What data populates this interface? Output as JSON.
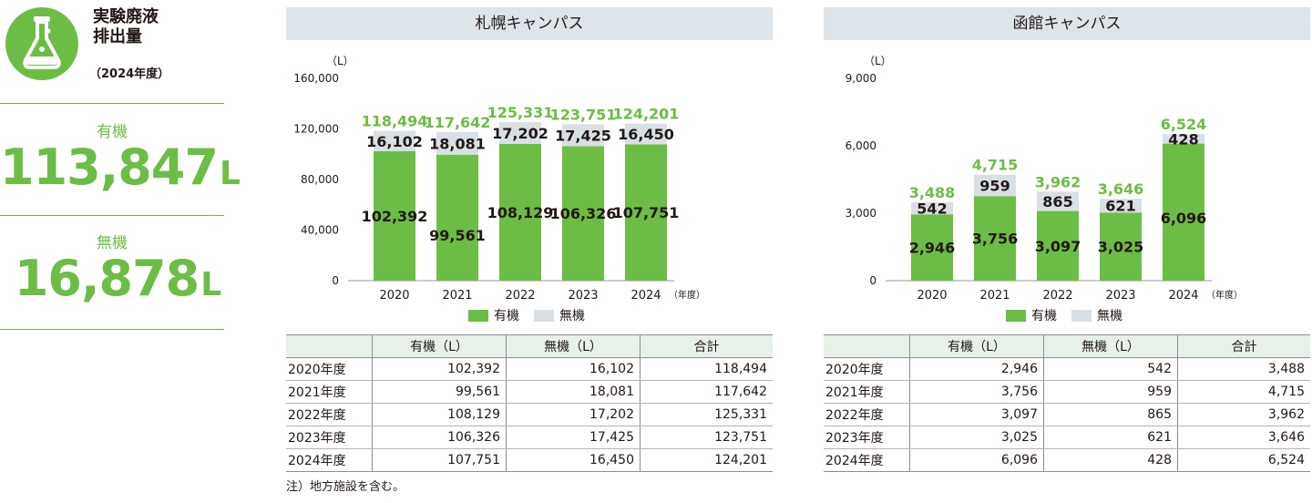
{
  "colors": {
    "accent": "#6cbd45",
    "organic": "#6cbd45",
    "inorganic": "#d8e0e6",
    "header_bg": "#dde4ea",
    "table_header_bg": "#e7f1e7",
    "text": "#231815"
  },
  "summary": {
    "icon": "flask-icon",
    "title_line1": "実験廃液",
    "title_line2": "排出量",
    "subtitle": "（2024年度）",
    "organic_label": "有機",
    "organic_value": "113,847",
    "inorganic_label": "無機",
    "inorganic_value": "16,878",
    "unit": "L"
  },
  "legend": {
    "organic": "有機",
    "inorganic": "無機"
  },
  "table_headers": {
    "year": "",
    "organic": "有機（L）",
    "inorganic": "無機（L）",
    "total": "合計"
  },
  "footnote": "注）地方施設を含む。",
  "chart_data": [
    {
      "type": "bar",
      "stacked": true,
      "title": "札幌キャンパス",
      "ylabel": "（L）",
      "xlabel": "（年度）",
      "categories": [
        "2020",
        "2021",
        "2022",
        "2023",
        "2024"
      ],
      "ylim": [
        0,
        160000
      ],
      "yticks": [
        "0",
        "40,000",
        "80,000",
        "120,000",
        "160,000"
      ],
      "series": [
        {
          "name": "有機",
          "values": [
            102392,
            99561,
            108129,
            106326,
            107751
          ]
        },
        {
          "name": "無機",
          "values": [
            16102,
            18081,
            17202,
            17425,
            16450
          ]
        }
      ],
      "totals": [
        118494,
        117642,
        125331,
        123751,
        124201
      ],
      "labels": {
        "organic": [
          "102,392",
          "99,561",
          "108,129",
          "106,326",
          "107,751"
        ],
        "inorganic": [
          "16,102",
          "18,081",
          "17,202",
          "17,425",
          "16,450"
        ],
        "totals": [
          "118,494",
          "117,642",
          "125,331",
          "123,751",
          "124,201"
        ]
      },
      "table_rows": [
        [
          "2020年度",
          "102,392",
          "16,102",
          "118,494"
        ],
        [
          "2021年度",
          "99,561",
          "18,081",
          "117,642"
        ],
        [
          "2022年度",
          "108,129",
          "17,202",
          "125,331"
        ],
        [
          "2023年度",
          "106,326",
          "17,425",
          "123,751"
        ],
        [
          "2024年度",
          "107,751",
          "16,450",
          "124,201"
        ]
      ]
    },
    {
      "type": "bar",
      "stacked": true,
      "title": "函館キャンパス",
      "ylabel": "（L）",
      "xlabel": "（年度）",
      "categories": [
        "2020",
        "2021",
        "2022",
        "2023",
        "2024"
      ],
      "ylim": [
        0,
        9000
      ],
      "yticks": [
        "0",
        "3,000",
        "6,000",
        "9,000"
      ],
      "series": [
        {
          "name": "有機",
          "values": [
            2946,
            3756,
            3097,
            3025,
            6096
          ]
        },
        {
          "name": "無機",
          "values": [
            542,
            959,
            865,
            621,
            428
          ]
        }
      ],
      "totals": [
        3488,
        4715,
        3962,
        3646,
        6524
      ],
      "labels": {
        "organic": [
          "2,946",
          "3,756",
          "3,097",
          "3,025",
          "6,096"
        ],
        "inorganic": [
          "542",
          "959",
          "865",
          "621",
          "428"
        ],
        "totals": [
          "3,488",
          "4,715",
          "3,962",
          "3,646",
          "6,524"
        ]
      },
      "table_rows": [
        [
          "2020年度",
          "2,946",
          "542",
          "3,488"
        ],
        [
          "2021年度",
          "3,756",
          "959",
          "4,715"
        ],
        [
          "2022年度",
          "3,097",
          "865",
          "3,962"
        ],
        [
          "2023年度",
          "3,025",
          "621",
          "3,646"
        ],
        [
          "2024年度",
          "6,096",
          "428",
          "6,524"
        ]
      ]
    }
  ]
}
